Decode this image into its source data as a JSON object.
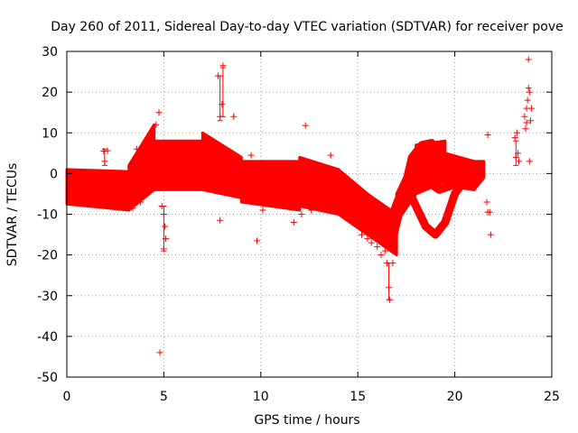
{
  "chart_data": {
    "type": "scatter",
    "title": "Day 260 of 2011, Sidereal Day-to-day VTEC variation (SDTVAR) for receiver pove",
    "xlabel": "GPS time / hours",
    "ylabel": "SDTVAR / TECUs",
    "xlim": [
      0,
      25
    ],
    "ylim": [
      -50,
      30
    ],
    "xticks": [
      0,
      5,
      10,
      15,
      20,
      25
    ],
    "yticks": [
      30,
      20,
      10,
      0,
      -10,
      -20,
      -30,
      -40,
      -50
    ],
    "grid": true,
    "legend": "none",
    "marker": "+",
    "error_bars": true,
    "color": "#ff0000",
    "series": [
      {
        "name": "SDTVAR",
        "bands": [
          {
            "x": [
              0,
              3.2
            ],
            "y_top": [
              1,
              0.5
            ],
            "y_bot": [
              -7.5,
              -9
            ]
          },
          {
            "x": [
              3.2,
              4.5
            ],
            "y_top": [
              2,
              12
            ],
            "y_bot": [
              -9,
              -4
            ]
          },
          {
            "x": [
              4.5,
              7
            ],
            "y_top": [
              8,
              8
            ],
            "y_bot": [
              -4,
              -4
            ]
          },
          {
            "x": [
              7,
              9
            ],
            "y_top": [
              10,
              4
            ],
            "y_bot": [
              -4,
              -6
            ]
          },
          {
            "x": [
              9,
              12
            ],
            "y_top": [
              3,
              3
            ],
            "y_bot": [
              -7,
              -9
            ]
          },
          {
            "x": [
              12,
              14
            ],
            "y_top": [
              4,
              1
            ],
            "y_bot": [
              -8,
              -10
            ]
          },
          {
            "x": [
              14,
              15.5
            ],
            "y_top": [
              1,
              -5
            ],
            "y_bot": [
              -10,
              -15
            ]
          },
          {
            "x": [
              15.5,
              17
            ],
            "y_top": [
              -5,
              -10
            ],
            "y_bot": [
              -15,
              -20
            ]
          },
          {
            "x": [
              17,
              18
            ],
            "y_top": [
              -5,
              5
            ],
            "y_bot": [
              -12,
              -5
            ]
          },
          {
            "x": [
              18,
              19.5
            ],
            "y_top": [
              7,
              8
            ],
            "y_bot": [
              -5,
              -2
            ]
          },
          {
            "x": [
              19.5,
              21
            ],
            "y_top": [
              5,
              3
            ],
            "y_bot": [
              -3,
              -4
            ]
          },
          {
            "x": [
              21,
              21.5
            ],
            "y_top": [
              3,
              3
            ],
            "y_bot": [
              -4,
              -1
            ]
          }
        ],
        "curves": [
          {
            "x": [
              15.5,
              16.3,
              16.8,
              17.2,
              17.8,
              18.3,
              18.8,
              19.2,
              19.7,
              20.2,
              21.0
            ],
            "y": [
              -6,
              -12,
              -16,
              -8,
              4,
              7,
              7.5,
              5,
              2,
              -1,
              1
            ]
          },
          {
            "x": [
              16.8,
              17.2,
              17.6,
              18.0,
              18.5,
              19.0,
              19.5,
              20.0,
              20.6,
              21.3
            ],
            "y": [
              -10,
              -5,
              -4,
              -8,
              -13,
              -15,
              -12,
              -5,
              -1,
              1
            ]
          },
          {
            "x": [
              17.0,
              17.5,
              18.0,
              18.6,
              19.2,
              19.8,
              20.4,
              21.0
            ],
            "y": [
              -12,
              -2,
              2,
              -2,
              -4,
              -3,
              -1,
              1
            ]
          }
        ],
        "markers": [
          [
            1.95,
            3
          ],
          [
            1.9,
            5.5
          ],
          [
            2.1,
            5.6
          ],
          [
            2.05,
            -2
          ],
          [
            1.85,
            -5
          ],
          [
            4.75,
            15
          ],
          [
            4.6,
            12
          ],
          [
            4.8,
            -44
          ],
          [
            5.0,
            -18.5
          ],
          [
            5.1,
            -16
          ],
          [
            5.05,
            -13
          ],
          [
            5.0,
            -10
          ],
          [
            4.9,
            -8
          ],
          [
            7.8,
            24
          ],
          [
            8.05,
            26.5
          ],
          [
            8.0,
            17
          ],
          [
            7.9,
            14
          ],
          [
            8.6,
            14
          ],
          [
            7.9,
            -11.5
          ],
          [
            9.8,
            -16.5
          ],
          [
            10.1,
            -9
          ],
          [
            11.7,
            -12
          ],
          [
            12.3,
            11.8
          ],
          [
            12.1,
            -10
          ],
          [
            15.2,
            -15
          ],
          [
            15.5,
            -16
          ],
          [
            15.7,
            -17
          ],
          [
            16.0,
            -18
          ],
          [
            16.2,
            -20
          ],
          [
            16.4,
            -19
          ],
          [
            16.5,
            -22
          ],
          [
            16.6,
            -28
          ],
          [
            16.65,
            -31
          ],
          [
            16.8,
            -22
          ],
          [
            21.7,
            9.5
          ],
          [
            21.65,
            -7
          ],
          [
            21.7,
            -9.5
          ],
          [
            21.8,
            -9.5
          ],
          [
            21.85,
            -15
          ],
          [
            23.1,
            8.8
          ],
          [
            23.2,
            10
          ],
          [
            23.25,
            5
          ],
          [
            23.3,
            3
          ],
          [
            23.15,
            4
          ],
          [
            23.6,
            14
          ],
          [
            23.7,
            16
          ],
          [
            23.75,
            18
          ],
          [
            23.8,
            21
          ],
          [
            23.85,
            20
          ],
          [
            23.9,
            13
          ],
          [
            23.95,
            16
          ],
          [
            23.8,
            28
          ],
          [
            23.85,
            3
          ],
          [
            23.65,
            11
          ],
          [
            23.7,
            12.5
          ],
          [
            1.2,
            -3
          ],
          [
            2.5,
            -5
          ],
          [
            3.5,
            0
          ],
          [
            3.8,
            -7
          ],
          [
            3.4,
            -8.5
          ],
          [
            3.6,
            6
          ],
          [
            6.5,
            7
          ],
          [
            9.5,
            4.5
          ],
          [
            10.5,
            -7
          ],
          [
            12.6,
            -9
          ],
          [
            13.6,
            4.5
          ],
          [
            14.2,
            -10
          ]
        ],
        "error_bars": [
          [
            7.9,
            13,
            24
          ],
          [
            8.05,
            14,
            26
          ],
          [
            5.0,
            -19,
            -8
          ],
          [
            16.6,
            -31,
            -22
          ],
          [
            23.15,
            2,
            8
          ],
          [
            1.95,
            2,
            6
          ]
        ]
      }
    ]
  }
}
